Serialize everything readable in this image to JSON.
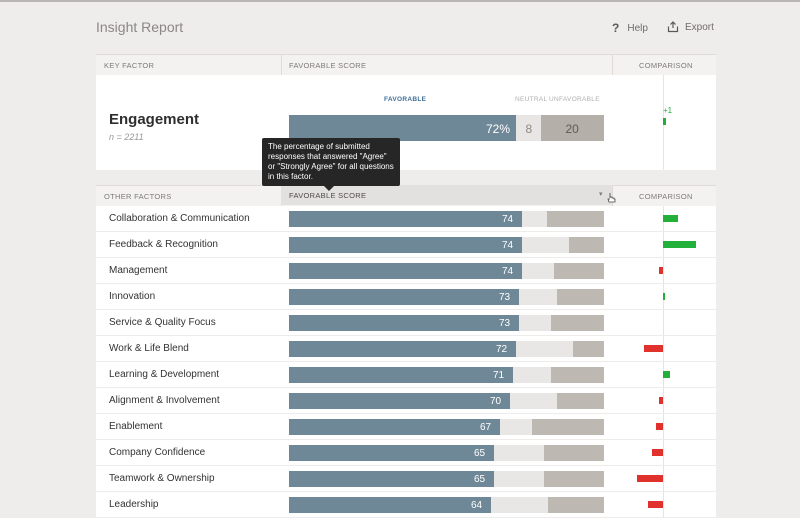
{
  "header": {
    "title": "Insight Report",
    "help_label": "Help",
    "help_glyph": "?",
    "export_label": "Export",
    "export_icon": "export-icon"
  },
  "key_section": {
    "col_key_factor": "KEY FACTOR",
    "col_favorable_score": "FAVORABLE SCORE",
    "col_comparison": "COMPARISON",
    "factor": "Engagement",
    "n_label": "n = 2211",
    "legend_favorable": "FAVORABLE",
    "legend_neutral": "NEUTRAL",
    "legend_unfavorable": "UNFAVORABLE",
    "favorable": "72%",
    "neutral": "8",
    "unfavorable": "20",
    "favorable_value": 72,
    "neutral_value": 8,
    "unfavorable_value": 20,
    "comparison": "+1",
    "comparison_value": 1
  },
  "tooltip": {
    "text": "The percentage of submitted responses that answered \"Agree\" or \"Strongly Agree\" for all questions in this factor."
  },
  "other_section": {
    "col_other_factors": "OTHER FACTORS",
    "col_favorable_score": "FAVORABLE SCORE",
    "sort_glyph": "▾",
    "col_comparison": "COMPARISON",
    "rows": [
      {
        "name": "Collaboration & Communication",
        "score": "74",
        "fav": 74,
        "neu": 8,
        "comparison": 4
      },
      {
        "name": "Feedback & Recognition",
        "score": "74",
        "fav": 74,
        "neu": 15,
        "comparison": 9
      },
      {
        "name": "Management",
        "score": "74",
        "fav": 74,
        "neu": 10,
        "comparison": -1
      },
      {
        "name": "Innovation",
        "score": "73",
        "fav": 73,
        "neu": 12,
        "comparison": 0.5
      },
      {
        "name": "Service & Quality Focus",
        "score": "73",
        "fav": 73,
        "neu": 10,
        "comparison": 0
      },
      {
        "name": "Work & Life Blend",
        "score": "72",
        "fav": 72,
        "neu": 18,
        "comparison": -5
      },
      {
        "name": "Learning & Development",
        "score": "71",
        "fav": 71,
        "neu": 12,
        "comparison": 2
      },
      {
        "name": "Alignment & Involvement",
        "score": "70",
        "fav": 70,
        "neu": 15,
        "comparison": -1
      },
      {
        "name": "Enablement",
        "score": "67",
        "fav": 67,
        "neu": 10,
        "comparison": -2
      },
      {
        "name": "Company Confidence",
        "score": "65",
        "fav": 65,
        "neu": 16,
        "comparison": -3
      },
      {
        "name": "Teamwork & Ownership",
        "score": "65",
        "fav": 65,
        "neu": 16,
        "comparison": -7
      },
      {
        "name": "Leadership",
        "score": "64",
        "fav": 64,
        "neu": 18,
        "comparison": -4
      }
    ]
  },
  "colors": {
    "favorable": "#6f8898",
    "neutral": "#e9e7e5",
    "unfavorable": "#bdb9b2",
    "positive": "#22b03a",
    "negative": "#e0312d"
  }
}
